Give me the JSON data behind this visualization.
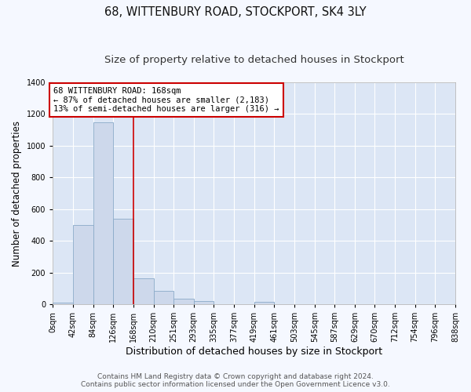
{
  "title1": "68, WITTENBURY ROAD, STOCKPORT, SK4 3LY",
  "title2": "Size of property relative to detached houses in Stockport",
  "xlabel": "Distribution of detached houses by size in Stockport",
  "ylabel": "Number of detached properties",
  "bar_color": "#cdd8eb",
  "bar_edge_color": "#8aaac8",
  "background_color": "#dce6f5",
  "grid_color": "#ffffff",
  "red_line_x": 168,
  "bin_edges": [
    0,
    42,
    84,
    126,
    168,
    210,
    251,
    293,
    335,
    377,
    419,
    461,
    503,
    545,
    587,
    629,
    670,
    712,
    754,
    796,
    838
  ],
  "bin_counts": [
    10,
    500,
    1150,
    540,
    165,
    85,
    35,
    22,
    0,
    0,
    15,
    0,
    0,
    0,
    0,
    0,
    0,
    0,
    0,
    0
  ],
  "annotation_text": "68 WITTENBURY ROAD: 168sqm\n← 87% of detached houses are smaller (2,183)\n13% of semi-detached houses are larger (316) →",
  "annotation_box_color": "#ffffff",
  "annotation_box_edge": "#cc0000",
  "footnote1": "Contains HM Land Registry data © Crown copyright and database right 2024.",
  "footnote2": "Contains public sector information licensed under the Open Government Licence v3.0.",
  "ylim": [
    0,
    1400
  ],
  "title1_fontsize": 10.5,
  "title2_fontsize": 9.5,
  "xlabel_fontsize": 9,
  "ylabel_fontsize": 8.5,
  "tick_fontsize": 7,
  "annot_fontsize": 7.5,
  "footnote_fontsize": 6.5
}
